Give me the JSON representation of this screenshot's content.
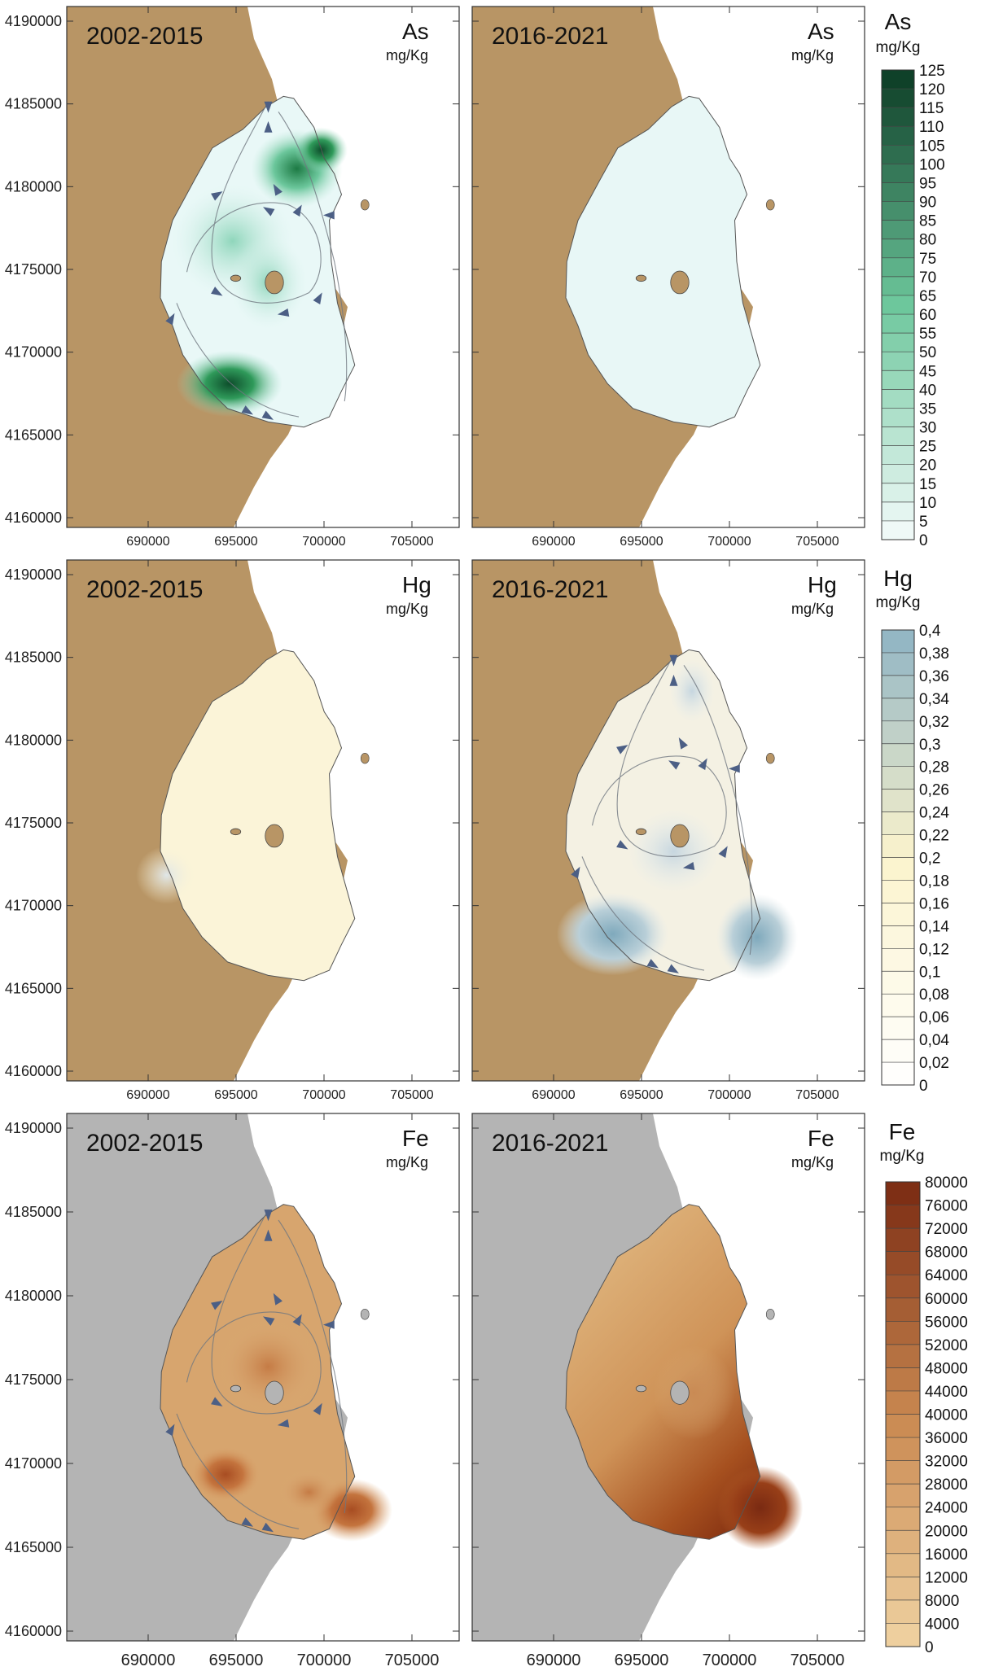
{
  "maps": {
    "y_tick_labels": [
      "4190000",
      "4185000",
      "4180000",
      "4175000",
      "4170000",
      "4165000",
      "4160000"
    ],
    "x_tick_labels": [
      "690000",
      "695000",
      "700000",
      "705000"
    ],
    "rows": [
      {
        "element": "As",
        "unit": "mg/Kg",
        "background": "#b89565",
        "panels": [
          {
            "period": "2002-2015",
            "fill": "as1",
            "arrows": true
          },
          {
            "period": "2016-2021",
            "fill": "as2",
            "arrows": false
          }
        ],
        "legend": {
          "title": "As",
          "unit": "mg/Kg",
          "labels": [
            "125",
            "120",
            "115",
            "110",
            "105",
            "100",
            "95",
            "90",
            "85",
            "80",
            "75",
            "70",
            "65",
            "60",
            "55",
            "50",
            "45",
            "40",
            "35",
            "30",
            "25",
            "20",
            "15",
            "10",
            "5",
            "0"
          ],
          "color_low": "#f4fbfb",
          "color_mid": "#6dc79c",
          "color_high": "#0b3b24"
        }
      },
      {
        "element": "Hg",
        "unit": "mg/Kg",
        "background": "#b89565",
        "panels": [
          {
            "period": "2002-2015",
            "fill": "hg1",
            "arrows": false
          },
          {
            "period": "2016-2021",
            "fill": "hg2",
            "arrows": true
          }
        ],
        "legend": {
          "title": "Hg",
          "unit": "mg/Kg",
          "labels": [
            "0,4",
            "0,38",
            "0,36",
            "0,34",
            "0,32",
            "0,3",
            "0,28",
            "0,26",
            "0,24",
            "0,22",
            "0,2",
            "0,18",
            "0,16",
            "0,14",
            "0,12",
            "0,1",
            "0,08",
            "0,06",
            "0,04",
            "0,02",
            "0"
          ],
          "color_low": "#ffffff",
          "color_mid": "#fbf3cc",
          "color_high": "#8fb4c4"
        }
      },
      {
        "element": "Fe",
        "unit": "mg/Kg",
        "background": "#b4b4b4",
        "panels": [
          {
            "period": "2002-2015",
            "fill": "fe1",
            "arrows": true
          },
          {
            "period": "2016-2021",
            "fill": "fe2",
            "arrows": false
          }
        ],
        "legend": {
          "title": "Fe",
          "unit": "mg/Kg",
          "labels": [
            "80000",
            "76000",
            "72000",
            "68000",
            "64000",
            "60000",
            "56000",
            "52000",
            "48000",
            "44000",
            "40000",
            "36000",
            "32000",
            "28000",
            "24000",
            "20000",
            "16000",
            "12000",
            "8000",
            "4000",
            "0"
          ],
          "color_low": "#f0d3a2",
          "color_mid": "#c98850",
          "color_high": "#7a2a12"
        }
      }
    ]
  }
}
